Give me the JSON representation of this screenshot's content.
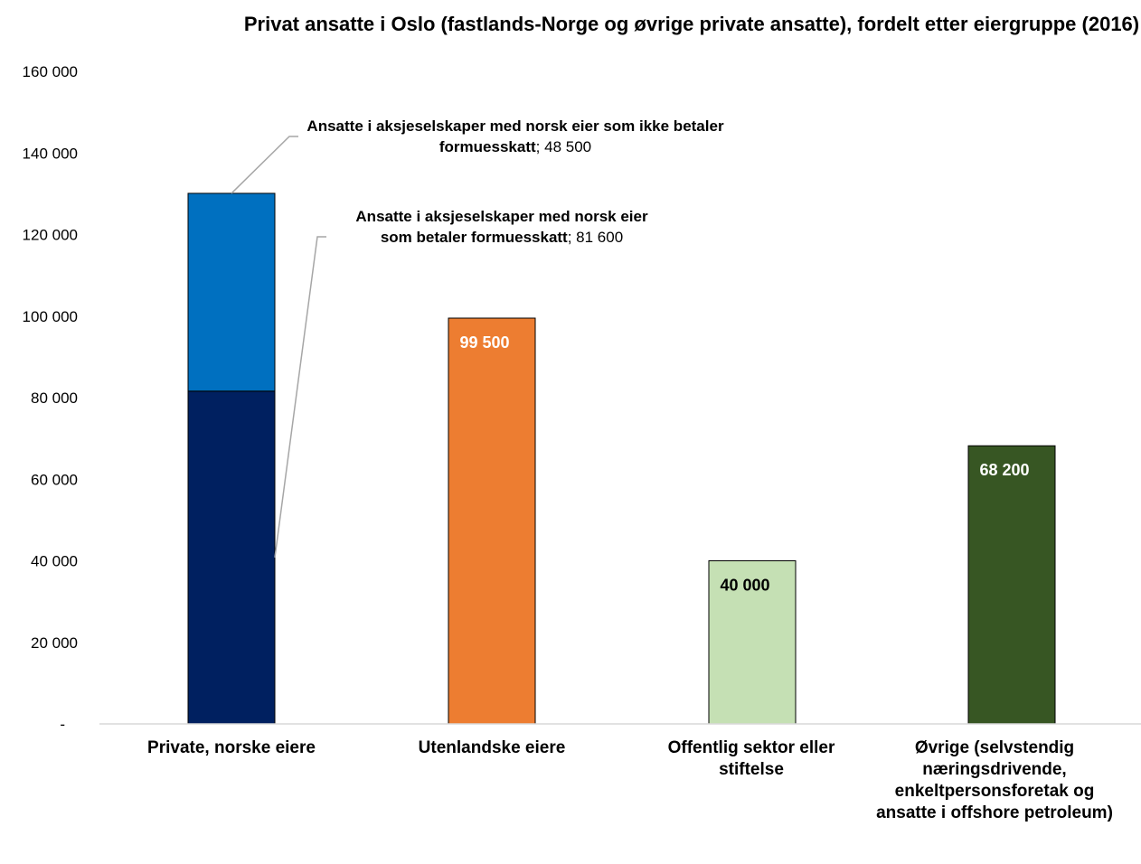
{
  "chart_data": {
    "type": "bar",
    "title": "Privat ansatte i Oslo (fastlands-Norge og øvrige private ansatte), fordelt etter eiergruppe (2016)",
    "categories": [
      "Private, norske eiere",
      "Utenlandske eiere",
      "Offentlig sektor eller stiftelse",
      "Øvrige (selvstendig næringsdrivende, enkeltpersonsforetak og ansatte i offshore petroleum)"
    ],
    "stacked_bar": {
      "category": "Private, norske eiere",
      "segments": [
        {
          "name": "Ansatte i aksjeselskaper med norsk eier som betaler formuesskatt",
          "value": 81600,
          "value_label": "81 600",
          "color": "#002060"
        },
        {
          "name": "Ansatte i aksjeselskaper med norsk eier som ikke betaler formuesskatt",
          "value": 48500,
          "value_label": "48 500",
          "color": "#0070C0"
        }
      ]
    },
    "bars": [
      {
        "category": "Utenlandske eiere",
        "value": 99500,
        "label": "99 500",
        "color": "#ED7D31",
        "label_color": "#ffffff"
      },
      {
        "category": "Offentlig sektor eller stiftelse",
        "value": 40000,
        "label": "40 000",
        "color": "#C5E0B4",
        "label_color": "#000000"
      },
      {
        "category": "Øvrige (selvstendig næringsdrivende, enkeltpersonsforetak og ansatte i offshore petroleum)",
        "value": 68200,
        "label": "68 200",
        "color": "#375623",
        "label_color": "#ffffff"
      }
    ],
    "y_ticks": [
      "-",
      "20 000",
      "40 000",
      "60 000",
      "80 000",
      "100 000",
      "120 000",
      "140 000",
      "160 000"
    ],
    "ylim": [
      0,
      160000
    ],
    "grid": false,
    "legend": "none"
  }
}
